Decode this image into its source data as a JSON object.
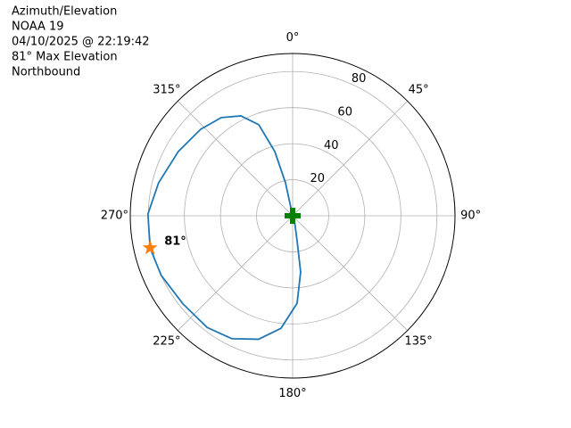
{
  "chart_data": {
    "type": "polar",
    "title": [
      "Azimuth/Elevation",
      "NOAA 19",
      "04/10/2025 @ 22:19:42",
      "81° Max Elevation",
      "Northbound"
    ],
    "theta_zero": "N",
    "theta_direction": "clockwise",
    "rlim": [
      0,
      90
    ],
    "rticks": [
      20,
      40,
      60,
      80
    ],
    "rlabel_angle": 22.5,
    "thetaticks": [
      {
        "value": 0,
        "label": "0°"
      },
      {
        "value": 45,
        "label": "45°"
      },
      {
        "value": 90,
        "label": "90°"
      },
      {
        "value": 135,
        "label": "135°"
      },
      {
        "value": 180,
        "label": "180°"
      },
      {
        "value": 225,
        "label": "225°"
      },
      {
        "value": 270,
        "label": "270°"
      },
      {
        "value": 315,
        "label": "315°"
      }
    ],
    "grid": true,
    "series": [
      {
        "color": "#1f77b4",
        "theta": [
          0,
          347.8,
          344.5,
          339.6,
          332.6,
          324,
          313.3,
          299.4,
          283.9,
          270.7,
          257.3,
          245.6,
          231.2,
          217.4,
          206.2,
          195.4,
          185.9,
          177.1,
          171.9,
          169.9,
          160
        ],
        "r": [
          0,
          18.7,
          37,
          53.9,
          62.4,
          67.3,
          70,
          72.7,
          76.5,
          80.2,
          81,
          80,
          78,
          78,
          76,
          71,
          62.7,
          48.6,
          31.5,
          14.1,
          3
        ]
      }
    ],
    "markers": [
      {
        "marker": "plus",
        "color": "#008000",
        "theta": 0,
        "r": 0
      },
      {
        "marker": "star",
        "color": "#ff7f0e",
        "theta": 257.3,
        "r": 81,
        "label": "81°"
      }
    ]
  }
}
